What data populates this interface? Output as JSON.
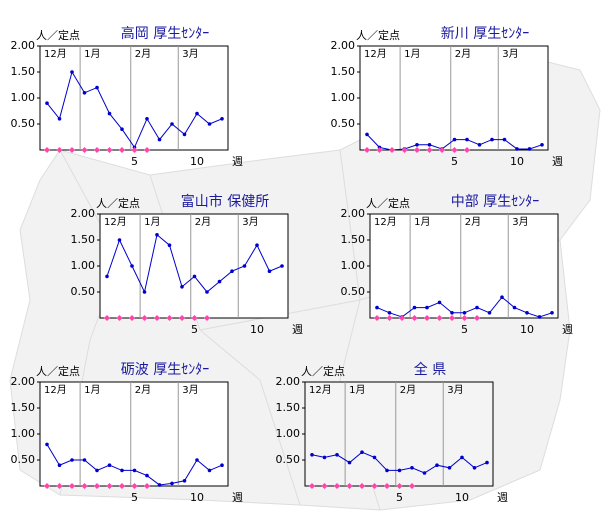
{
  "chart_data": [
    {
      "type": "line",
      "title": "高岡 厚生ｾﾝﾀｰ",
      "y_label": "人／定点",
      "x_label": "週",
      "categories": [
        null,
        null,
        null,
        null,
        null,
        null,
        null,
        "5",
        null,
        null,
        null,
        null,
        "10",
        null,
        null
      ],
      "months": [
        "12月",
        "1月",
        "2月",
        "3月"
      ],
      "month_boundaries": [
        2.65,
        6.7,
        10.5
      ],
      "plot_background": "#ffffff",
      "series": [
        {
          "color": "#0000cc",
          "values": [
            0.9,
            0.6,
            1.5,
            1.1,
            1.2,
            0.7,
            0.4,
            0.05,
            0.6,
            0.2,
            0.5,
            0.3,
            0.7,
            0.5,
            0.6
          ]
        },
        {
          "color": "#ff44aa",
          "marker": "diamond",
          "values": [
            0,
            0,
            0,
            0,
            0,
            0,
            0,
            0,
            0,
            null,
            null,
            null,
            null,
            null,
            null
          ]
        }
      ],
      "ylim": [
        0,
        2
      ],
      "yticks": [
        {
          "value": 0.5,
          "label": "0.50"
        },
        {
          "value": 1,
          "label": "1.00"
        },
        {
          "value": 1.5,
          "label": "1.50"
        },
        {
          "value": 2,
          "label": "2.00"
        }
      ]
    },
    {
      "type": "line",
      "title": "新川 厚生ｾﾝﾀｰ",
      "y_label": "人／定点",
      "x_label": "週",
      "categories": [
        null,
        null,
        null,
        null,
        null,
        null,
        null,
        "5",
        null,
        null,
        null,
        null,
        "10",
        null,
        null
      ],
      "months": [
        "12月",
        "1月",
        "2月",
        "3月"
      ],
      "month_boundaries": [
        2.65,
        6.7,
        10.5
      ],
      "plot_background": "#ffffff",
      "series": [
        {
          "color": "#0000cc",
          "values": [
            0.3,
            0.05,
            0,
            0.02,
            0.1,
            0.1,
            0.02,
            0.2,
            0.2,
            0.1,
            0.2,
            0.2,
            0.02,
            0.02,
            0.1
          ]
        },
        {
          "color": "#ff44aa",
          "marker": "diamond",
          "values": [
            0,
            0,
            0,
            0,
            0,
            0,
            0,
            0,
            0,
            null,
            null,
            null,
            null,
            null,
            null
          ]
        }
      ],
      "ylim": [
        0,
        2
      ],
      "yticks": [
        {
          "value": 0.5,
          "label": "0.50"
        },
        {
          "value": 1,
          "label": "1.00"
        },
        {
          "value": 1.5,
          "label": "1.50"
        },
        {
          "value": 2,
          "label": "2.00"
        }
      ]
    },
    {
      "type": "line",
      "title": "富山市 保健所",
      "y_label": "人／定点",
      "x_label": "週",
      "categories": [
        null,
        null,
        null,
        null,
        null,
        null,
        null,
        "5",
        null,
        null,
        null,
        null,
        "10",
        null,
        null
      ],
      "months": [
        "12月",
        "1月",
        "2月",
        "3月"
      ],
      "month_boundaries": [
        2.65,
        6.7,
        10.5
      ],
      "plot_background": "#ffffff",
      "series": [
        {
          "color": "#0000cc",
          "values": [
            0.8,
            1.5,
            1.0,
            0.5,
            1.6,
            1.4,
            0.6,
            0.8,
            0.5,
            0.7,
            0.9,
            1.0,
            1.4,
            0.9,
            1.0
          ]
        },
        {
          "color": "#ff44aa",
          "marker": "diamond",
          "values": [
            0,
            0,
            0,
            0,
            0,
            0,
            0,
            0,
            0,
            null,
            null,
            null,
            null,
            null,
            null
          ]
        }
      ],
      "ylim": [
        0,
        2
      ],
      "yticks": [
        {
          "value": 0.5,
          "label": "0.50"
        },
        {
          "value": 1,
          "label": "1.00"
        },
        {
          "value": 1.5,
          "label": "1.50"
        },
        {
          "value": 2,
          "label": "2.00"
        }
      ]
    },
    {
      "type": "line",
      "title": "中部 厚生ｾﾝﾀｰ",
      "y_label": "人／定点",
      "x_label": "週",
      "categories": [
        null,
        null,
        null,
        null,
        null,
        null,
        null,
        "5",
        null,
        null,
        null,
        null,
        "10",
        null,
        null
      ],
      "months": [
        "12月",
        "1月",
        "2月",
        "3月"
      ],
      "month_boundaries": [
        2.65,
        6.7,
        10.5
      ],
      "plot_background": "#ffffff",
      "series": [
        {
          "color": "#0000cc",
          "values": [
            0.2,
            0.1,
            0.02,
            0.2,
            0.2,
            0.3,
            0.1,
            0.1,
            0.2,
            0.1,
            0.4,
            0.2,
            0.1,
            0.02,
            0.1
          ]
        },
        {
          "color": "#ff44aa",
          "marker": "diamond",
          "values": [
            0,
            0,
            0,
            0,
            0,
            0,
            0,
            0,
            0,
            null,
            null,
            null,
            null,
            null,
            null
          ]
        }
      ],
      "ylim": [
        0,
        2
      ],
      "yticks": [
        {
          "value": 0.5,
          "label": "0.50"
        },
        {
          "value": 1,
          "label": "1.00"
        },
        {
          "value": 1.5,
          "label": "1.50"
        },
        {
          "value": 2,
          "label": "2.00"
        }
      ]
    },
    {
      "type": "line",
      "title": "砺波 厚生ｾﾝﾀｰ",
      "y_label": "人／定点",
      "x_label": "週",
      "categories": [
        null,
        null,
        null,
        null,
        null,
        null,
        null,
        "5",
        null,
        null,
        null,
        null,
        "10",
        null,
        null
      ],
      "months": [
        "12月",
        "1月",
        "2月",
        "3月"
      ],
      "month_boundaries": [
        2.65,
        6.7,
        10.5
      ],
      "plot_background": "#ffffff",
      "series": [
        {
          "color": "#0000cc",
          "values": [
            0.8,
            0.4,
            0.5,
            0.5,
            0.3,
            0.4,
            0.3,
            0.3,
            0.2,
            0.02,
            0.05,
            0.1,
            0.5,
            0.3,
            0.4
          ]
        },
        {
          "color": "#ff44aa",
          "marker": "diamond",
          "values": [
            0,
            0,
            0,
            0,
            0,
            0,
            0,
            0,
            0,
            null,
            null,
            null,
            null,
            null,
            null
          ]
        }
      ],
      "ylim": [
        0,
        2
      ],
      "yticks": [
        {
          "value": 0.5,
          "label": "0.50"
        },
        {
          "value": 1,
          "label": "1.00"
        },
        {
          "value": 1.5,
          "label": "1.50"
        },
        {
          "value": 2,
          "label": "2.00"
        }
      ]
    },
    {
      "type": "line",
      "title": "全 県",
      "y_label": "人／定点",
      "x_label": "週",
      "categories": [
        null,
        null,
        null,
        null,
        null,
        null,
        null,
        "5",
        null,
        null,
        null,
        null,
        "10",
        null,
        null
      ],
      "months": [
        "12月",
        "1月",
        "2月",
        "3月"
      ],
      "month_boundaries": [
        2.65,
        6.7,
        10.5
      ],
      "plot_background": "#f4f4f4",
      "series": [
        {
          "color": "#0000cc",
          "values": [
            0.6,
            0.55,
            0.6,
            0.45,
            0.65,
            0.55,
            0.3,
            0.3,
            0.35,
            0.25,
            0.4,
            0.35,
            0.55,
            0.35,
            0.45
          ]
        },
        {
          "color": "#ff44aa",
          "marker": "diamond",
          "values": [
            0,
            0,
            0,
            0,
            0,
            0,
            0,
            0,
            0,
            null,
            null,
            null,
            null,
            null,
            null
          ]
        }
      ],
      "ylim": [
        0,
        2
      ],
      "yticks": [
        {
          "value": 0.5,
          "label": "0.50"
        },
        {
          "value": 1,
          "label": "1.00"
        },
        {
          "value": 1.5,
          "label": "1.50"
        },
        {
          "value": 2,
          "label": "2.00"
        }
      ]
    }
  ]
}
